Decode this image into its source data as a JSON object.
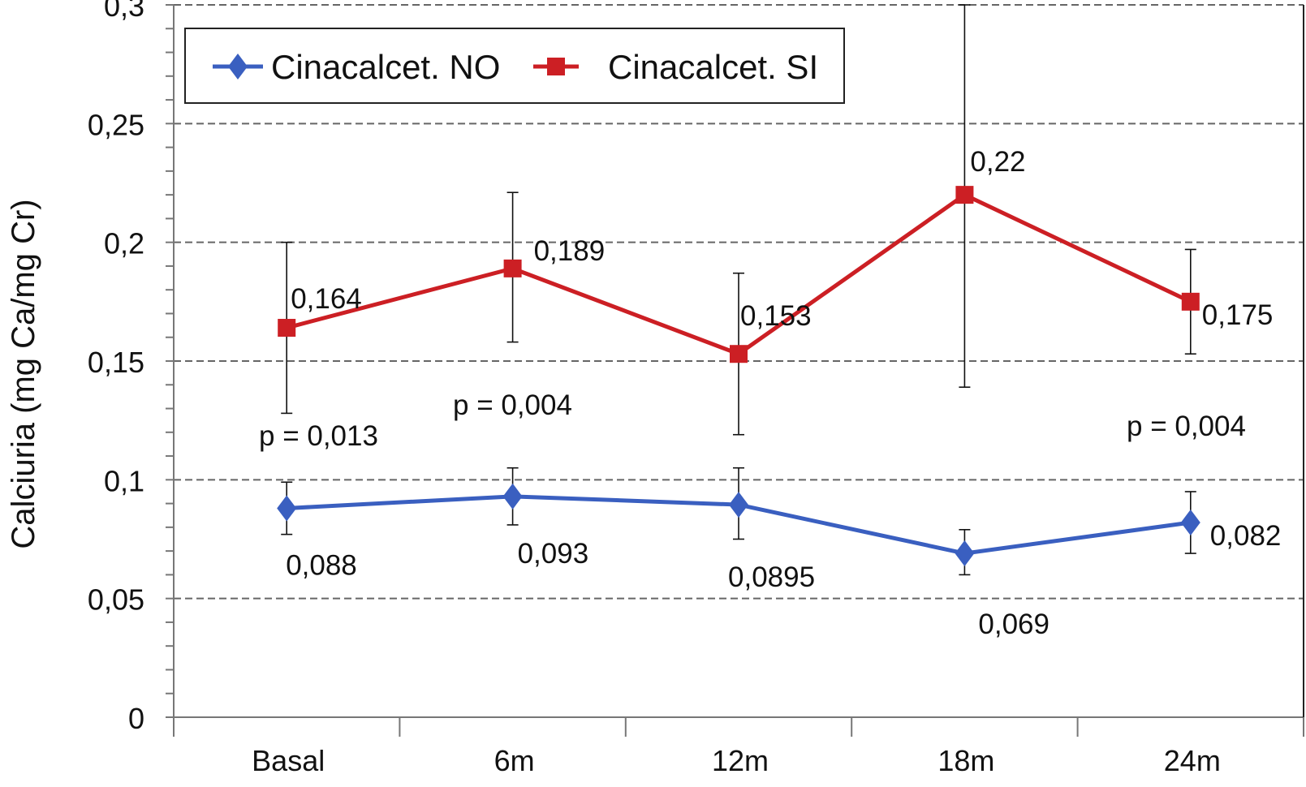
{
  "chart_data": {
    "type": "line",
    "title": "",
    "xlabel": "",
    "ylabel": "Calciuria (mg Ca/mg Cr)",
    "ylim": [
      0,
      0.3
    ],
    "yticks": [
      "0",
      "0,05",
      "0,1",
      "0,15",
      "0,2",
      "0,25",
      "0,3"
    ],
    "ytick_values": [
      0,
      0.05,
      0.1,
      0.15,
      0.2,
      0.25,
      0.3
    ],
    "grid": "horizontal dashed",
    "legend_position": "top-left",
    "categories": [
      "Basal",
      "6m",
      "12m",
      "18m",
      "24m"
    ],
    "series": [
      {
        "name": "Cinacalcet. NO",
        "color": "#3a5fc0",
        "marker": "diamond",
        "values": [
          0.088,
          0.093,
          0.0895,
          0.069,
          0.082
        ],
        "labels": [
          "0,088",
          "0,093",
          "0,0895",
          "0,069",
          "0,082"
        ],
        "error_low": [
          0.077,
          0.081,
          0.075,
          0.06,
          0.069
        ],
        "error_high": [
          0.099,
          0.105,
          0.105,
          0.079,
          0.095
        ]
      },
      {
        "name": "Cinacalcet. SI",
        "color": "#cc1f24",
        "marker": "square",
        "values": [
          0.164,
          0.189,
          0.153,
          0.22,
          0.175
        ],
        "labels": [
          "0,164",
          "0,189",
          "0,153",
          "0,22",
          "0,175"
        ],
        "error_low": [
          0.128,
          0.158,
          0.119,
          0.139,
          0.153
        ],
        "error_high": [
          0.2,
          0.221,
          0.187,
          0.3,
          0.197
        ]
      }
    ],
    "annotations": [
      "p = 0,013",
      "p = 0,004",
      "p = 0,004"
    ]
  }
}
